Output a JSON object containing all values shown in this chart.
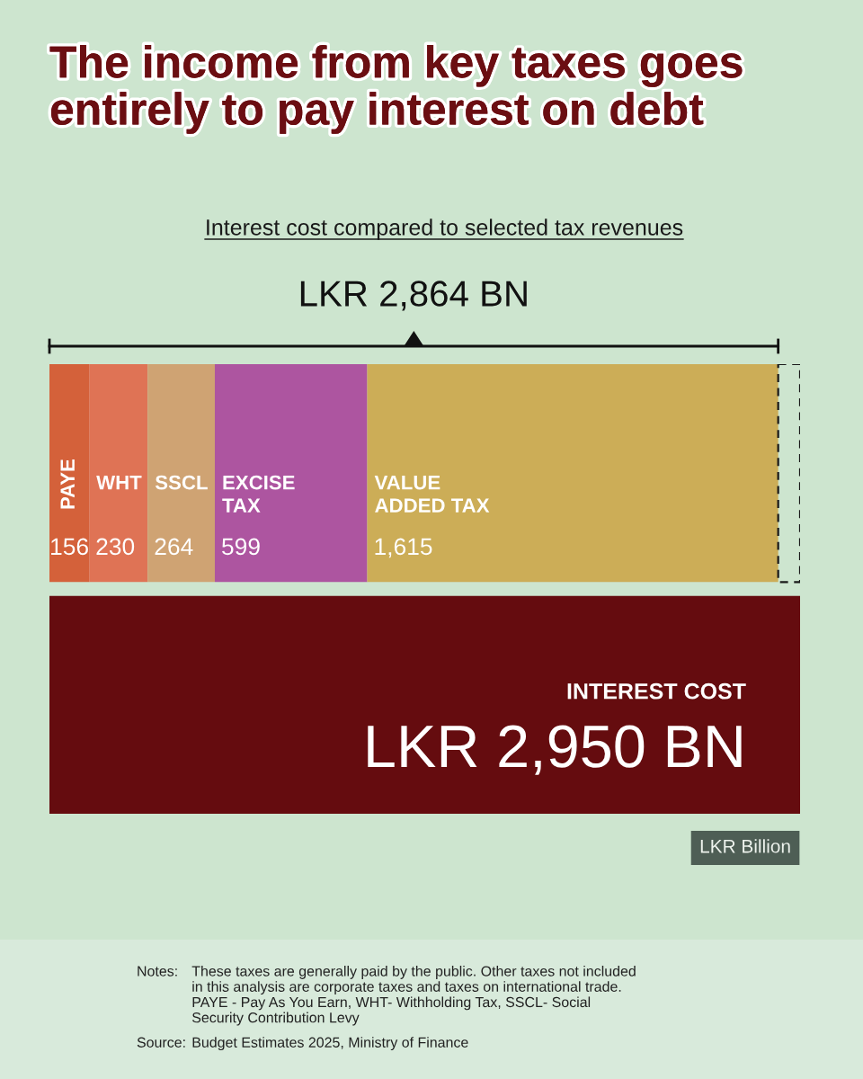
{
  "chart_data": {
    "type": "bar",
    "orientation": "horizontal",
    "stacked": true,
    "title": "The income from key taxes goes entirely to pay interest on debt",
    "subtitle": "Interest cost compared to selected tax revenues",
    "categories": [
      null,
      null
    ],
    "xlim": [
      0,
      2950
    ],
    "tick_labels": false,
    "series": [
      {
        "name": "PAYE",
        "color": "#d4613a",
        "values": [
          156,
          null
        ],
        "value_labels": [
          "156",
          null
        ]
      },
      {
        "name": "WHT",
        "color": "#df7355",
        "values": [
          230,
          null
        ],
        "value_labels": [
          "230",
          null
        ]
      },
      {
        "name": "SSCL",
        "color": "#cfa373",
        "values": [
          264,
          null
        ],
        "value_labels": [
          "264",
          null
        ]
      },
      {
        "name": "EXCISE\nTAX",
        "color": "#ad55a0",
        "values": [
          599,
          null
        ],
        "value_labels": [
          "599",
          null
        ]
      },
      {
        "name": "VALUE\nADDED TAX",
        "color": "#ccad57",
        "values": [
          1615,
          null
        ],
        "value_labels": [
          "1,615",
          null
        ]
      },
      {
        "color": "#1a1a1a",
        "line_style": "dashed",
        "values": [
          86,
          null
        ]
      },
      {
        "name": "INTEREST COST",
        "color": "#650c0f",
        "values": [
          null,
          2950
        ],
        "value_labels": [
          null,
          "LKR 2,950 BN"
        ]
      }
    ],
    "totals": [
      "LKR 2,864 BN",
      null
    ],
    "annotations": [
      "LKR Billion",
      "Notes:",
      "These taxes are generally paid by the public. Other taxes not included in this analysis are corporate taxes and taxes on international trade. PAYE - Pay As You Earn, WHT- Withholding Tax, SSCL- Social Security Contribution Levy",
      "Source:",
      "Budget Estimates 2025, Ministry of Finance"
    ]
  }
}
